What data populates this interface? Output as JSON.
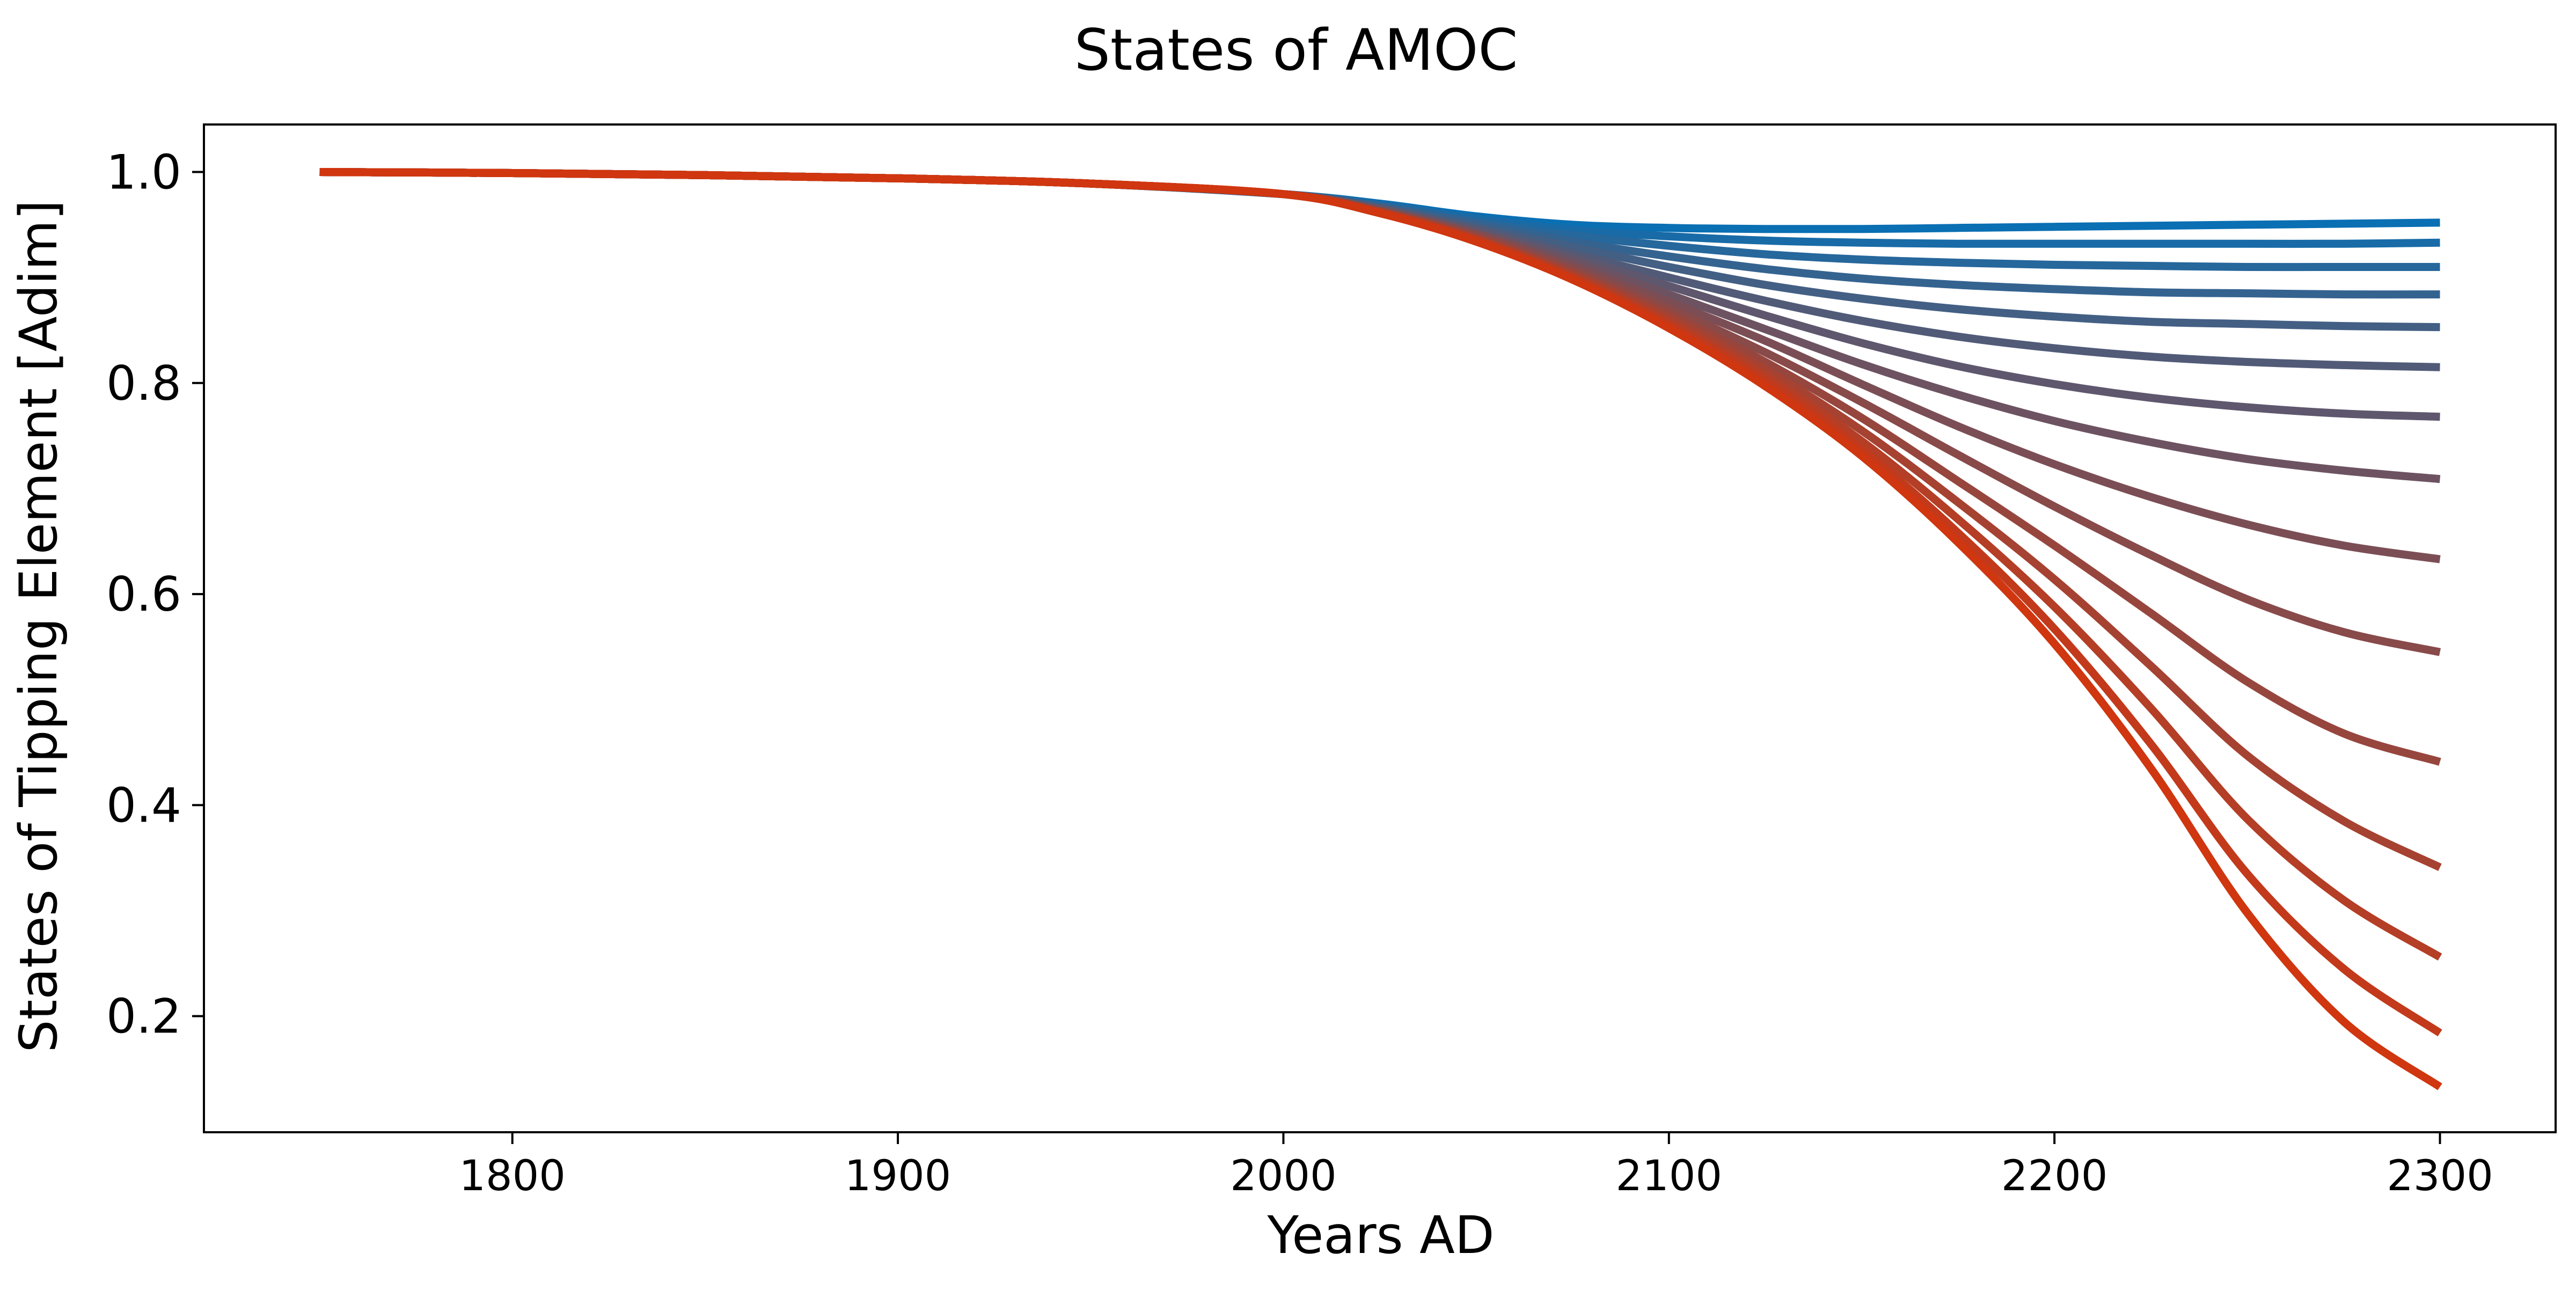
{
  "chart_data": {
    "type": "line",
    "title": "States of AMOC",
    "xlabel": "Years AD",
    "ylabel": "States of Tipping Element [Adim]",
    "xlim": [
      1720,
      2330
    ],
    "ylim": [
      0.09,
      1.045
    ],
    "xticks": [
      1800,
      1900,
      2000,
      2100,
      2200,
      2300
    ],
    "xtick_labels": [
      "1800",
      "1900",
      "2000",
      "2100",
      "2200",
      "2300"
    ],
    "yticks": [
      0.2,
      0.4,
      0.6,
      0.8,
      1.0
    ],
    "ytick_labels": [
      "0.2",
      "0.4",
      "0.6",
      "0.8",
      "1.0"
    ],
    "grid": false,
    "legend": "none",
    "color_start": "#0a6fb3",
    "color_end": "#d0360f",
    "x": [
      1750,
      1800,
      1850,
      1900,
      1950,
      2000,
      2025,
      2050,
      2075,
      2100,
      2125,
      2150,
      2175,
      2200,
      2225,
      2250,
      2275,
      2300
    ],
    "series": [
      {
        "values": [
          1.0,
          0.999,
          0.997,
          0.994,
          0.989,
          0.979,
          0.97,
          0.958,
          0.95,
          0.947,
          0.946,
          0.946,
          0.947,
          0.948,
          0.949,
          0.95,
          0.951,
          0.952
        ]
      },
      {
        "values": [
          1.0,
          0.999,
          0.997,
          0.994,
          0.989,
          0.979,
          0.969,
          0.956,
          0.945,
          0.939,
          0.935,
          0.933,
          0.932,
          0.932,
          0.932,
          0.932,
          0.932,
          0.933
        ]
      },
      {
        "values": [
          1.0,
          0.999,
          0.997,
          0.994,
          0.989,
          0.979,
          0.968,
          0.953,
          0.94,
          0.93,
          0.922,
          0.917,
          0.914,
          0.912,
          0.911,
          0.91,
          0.91,
          0.91
        ]
      },
      {
        "values": [
          1.0,
          0.999,
          0.997,
          0.994,
          0.989,
          0.979,
          0.967,
          0.951,
          0.934,
          0.92,
          0.908,
          0.899,
          0.893,
          0.889,
          0.886,
          0.885,
          0.884,
          0.884
        ]
      },
      {
        "values": [
          1.0,
          0.999,
          0.997,
          0.994,
          0.989,
          0.979,
          0.966,
          0.948,
          0.929,
          0.91,
          0.893,
          0.88,
          0.87,
          0.863,
          0.858,
          0.856,
          0.854,
          0.853
        ]
      },
      {
        "values": [
          1.0,
          0.999,
          0.997,
          0.994,
          0.989,
          0.979,
          0.965,
          0.946,
          0.923,
          0.9,
          0.878,
          0.859,
          0.844,
          0.833,
          0.825,
          0.82,
          0.817,
          0.815
        ]
      },
      {
        "values": [
          1.0,
          0.999,
          0.997,
          0.994,
          0.989,
          0.979,
          0.965,
          0.944,
          0.919,
          0.892,
          0.864,
          0.838,
          0.816,
          0.799,
          0.786,
          0.777,
          0.771,
          0.768
        ]
      },
      {
        "values": [
          1.0,
          0.999,
          0.997,
          0.994,
          0.989,
          0.979,
          0.964,
          0.942,
          0.915,
          0.884,
          0.851,
          0.818,
          0.789,
          0.764,
          0.744,
          0.728,
          0.717,
          0.709
        ]
      },
      {
        "values": [
          1.0,
          0.999,
          0.997,
          0.994,
          0.989,
          0.979,
          0.963,
          0.941,
          0.911,
          0.877,
          0.84,
          0.799,
          0.759,
          0.723,
          0.692,
          0.666,
          0.646,
          0.633
        ]
      },
      {
        "values": [
          1.0,
          0.999,
          0.997,
          0.994,
          0.989,
          0.979,
          0.963,
          0.94,
          0.908,
          0.871,
          0.829,
          0.782,
          0.732,
          0.683,
          0.637,
          0.595,
          0.564,
          0.545
        ]
      },
      {
        "values": [
          1.0,
          0.999,
          0.997,
          0.994,
          0.989,
          0.979,
          0.962,
          0.938,
          0.905,
          0.866,
          0.82,
          0.767,
          0.707,
          0.646,
          0.582,
          0.517,
          0.468,
          0.441
        ]
      },
      {
        "values": [
          1.0,
          0.999,
          0.997,
          0.994,
          0.989,
          0.979,
          0.962,
          0.937,
          0.903,
          0.862,
          0.813,
          0.755,
          0.687,
          0.614,
          0.532,
          0.447,
          0.385,
          0.341
        ]
      },
      {
        "values": [
          1.0,
          0.999,
          0.997,
          0.994,
          0.989,
          0.979,
          0.962,
          0.936,
          0.901,
          0.858,
          0.807,
          0.745,
          0.671,
          0.588,
          0.492,
          0.387,
          0.31,
          0.256
        ]
      },
      {
        "values": [
          1.0,
          0.999,
          0.997,
          0.994,
          0.989,
          0.979,
          0.961,
          0.935,
          0.899,
          0.855,
          0.802,
          0.737,
          0.658,
          0.567,
          0.458,
          0.335,
          0.245,
          0.184
        ]
      },
      {
        "values": [
          1.0,
          0.999,
          0.997,
          0.994,
          0.989,
          0.979,
          0.961,
          0.934,
          0.898,
          0.852,
          0.797,
          0.731,
          0.649,
          0.553,
          0.435,
          0.298,
          0.195,
          0.133
        ]
      }
    ]
  }
}
